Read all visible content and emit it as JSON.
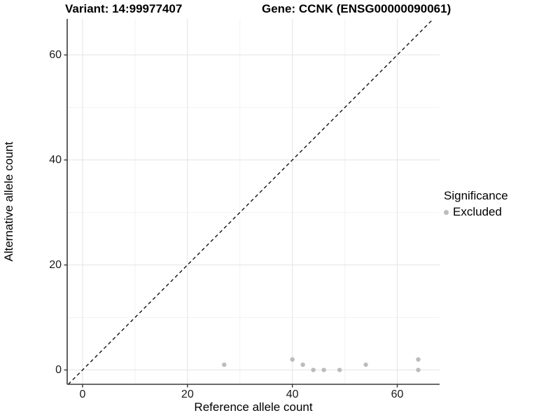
{
  "titles": {
    "variant": "Variant: 14:99977407",
    "gene": "Gene: CCNK (ENSG00000090061)"
  },
  "legend": {
    "title": "Significance",
    "items": [
      {
        "label": "Excluded",
        "color": "#bcbcbc"
      }
    ]
  },
  "chart_data": {
    "type": "scatter",
    "title": "Variant: 14:99977407   Gene: CCNK (ENSG00000090061)",
    "xlabel": "Reference allele count",
    "ylabel": "Alternative allele count",
    "xlim": [
      -2.93,
      68.07
    ],
    "ylim": [
      -2.73,
      66.87
    ],
    "x_ticks": [
      0,
      20,
      40,
      60
    ],
    "y_ticks": [
      0,
      20,
      40,
      60
    ],
    "x_minor_ticks": [
      10,
      30,
      50
    ],
    "y_minor_ticks": [
      10,
      30,
      50
    ],
    "grid": true,
    "legend_position": "right",
    "series": [
      {
        "name": "Excluded",
        "color": "#bcbcbc",
        "points": [
          [
            27,
            1
          ],
          [
            40,
            2
          ],
          [
            42,
            1
          ],
          [
            44,
            0
          ],
          [
            46,
            0
          ],
          [
            49,
            0
          ],
          [
            54,
            1
          ],
          [
            64,
            2
          ],
          [
            64,
            0
          ]
        ]
      }
    ],
    "reference_line": {
      "type": "identity",
      "equation": "y = x",
      "style": "dashed",
      "color": "#111111"
    }
  },
  "colors": {
    "background": "#ffffff",
    "grid_major": "#e4e4e4",
    "grid_minor": "#f2f2f2",
    "axis_line": "#3a3a3a",
    "tick_mark": "#333333",
    "point": "#bcbcbc",
    "dashed_line": "#111111"
  }
}
